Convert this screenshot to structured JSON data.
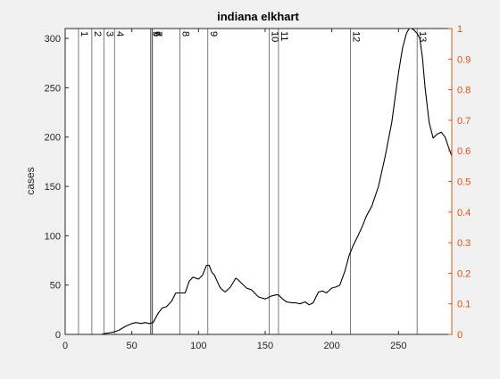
{
  "chart_data": {
    "type": "line",
    "title": "indiana elkhart",
    "xlabel": "",
    "ylabel": "cases",
    "xlim": [
      0,
      290
    ],
    "ylim": [
      0,
      310
    ],
    "y2lim": [
      0,
      1
    ],
    "x_ticks": [
      0,
      50,
      100,
      150,
      200,
      250
    ],
    "y_ticks": [
      0,
      50,
      100,
      150,
      200,
      250,
      300
    ],
    "y2_ticks": [
      0,
      0.1,
      0.2,
      0.3,
      0.4,
      0.5,
      0.6,
      0.7,
      0.8,
      0.9,
      1
    ],
    "y2_color": "#d95319",
    "line_color": "#000000",
    "grid": false,
    "event_lines": [
      {
        "x": 10,
        "label": "1"
      },
      {
        "x": 20,
        "label": "2"
      },
      {
        "x": 29,
        "label": "3"
      },
      {
        "x": 37,
        "label": "4"
      },
      {
        "x": 64,
        "label": "5"
      },
      {
        "x": 65,
        "label": "6"
      },
      {
        "x": 65.5,
        "label": "7"
      },
      {
        "x": 86,
        "label": "8"
      },
      {
        "x": 107,
        "label": "9"
      },
      {
        "x": 153,
        "label": "10"
      },
      {
        "x": 160,
        "label": "11"
      },
      {
        "x": 214,
        "label": "12"
      },
      {
        "x": 264,
        "label": "13"
      }
    ],
    "series": [
      {
        "x": [
          27,
          30,
          35,
          40,
          45,
          50,
          53,
          57,
          60,
          63,
          66,
          68,
          70,
          73,
          76,
          80,
          83,
          86,
          90,
          93,
          96,
          100,
          103,
          106,
          108,
          110,
          112,
          114,
          116,
          118,
          120,
          124,
          128,
          130,
          133,
          136,
          140,
          145,
          150,
          155,
          158,
          160,
          163,
          166,
          170,
          173,
          176,
          180,
          183,
          186,
          190,
          193,
          196,
          200,
          203,
          206,
          210,
          213,
          216,
          220,
          223,
          226,
          230,
          235,
          240,
          245,
          250,
          253,
          256,
          258,
          260,
          262,
          264,
          266,
          268,
          270,
          273,
          276,
          279,
          282,
          285,
          288,
          290
        ],
        "values": [
          0,
          1,
          2,
          4,
          8,
          11,
          12,
          11,
          12,
          11,
          12,
          17,
          22,
          27,
          28,
          34,
          42,
          42,
          42,
          54,
          58,
          56,
          60,
          70,
          70,
          63,
          60,
          54,
          48,
          45,
          43,
          48,
          57,
          55,
          51,
          47,
          45,
          38,
          36,
          39,
          40,
          40,
          36,
          33,
          32,
          32,
          31,
          33,
          30,
          32,
          43,
          44,
          42,
          47,
          48,
          50,
          65,
          80,
          90,
          101,
          110,
          120,
          130,
          150,
          180,
          215,
          265,
          290,
          305,
          310,
          310,
          308,
          305,
          300,
          280,
          250,
          215,
          199,
          203,
          205,
          200,
          188,
          181
        ]
      }
    ]
  }
}
